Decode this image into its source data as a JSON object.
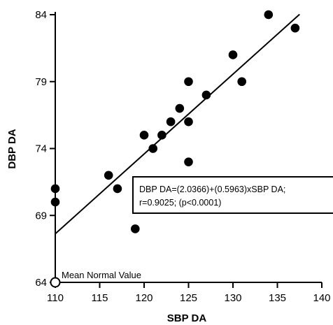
{
  "chart_data": {
    "type": "scatter",
    "xlabel": "SBP DA",
    "ylabel": "DBP DA",
    "xlim": [
      110,
      140
    ],
    "ylim": [
      64,
      84
    ],
    "x_ticks": [
      110,
      115,
      120,
      125,
      130,
      135,
      140
    ],
    "y_ticks": [
      64,
      69,
      74,
      79,
      84
    ],
    "grid": false,
    "points": [
      {
        "x": 110,
        "y": 71
      },
      {
        "x": 110,
        "y": 70
      },
      {
        "x": 116,
        "y": 72
      },
      {
        "x": 117,
        "y": 71
      },
      {
        "x": 119,
        "y": 68
      },
      {
        "x": 120,
        "y": 75
      },
      {
        "x": 121,
        "y": 74
      },
      {
        "x": 122,
        "y": 75
      },
      {
        "x": 123,
        "y": 76
      },
      {
        "x": 124,
        "y": 77
      },
      {
        "x": 125,
        "y": 79
      },
      {
        "x": 125,
        "y": 76
      },
      {
        "x": 125,
        "y": 73
      },
      {
        "x": 127,
        "y": 78
      },
      {
        "x": 130,
        "y": 81
      },
      {
        "x": 131,
        "y": 79
      },
      {
        "x": 134,
        "y": 84
      },
      {
        "x": 137,
        "y": 83
      }
    ],
    "regression": {
      "intercept": 2.0366,
      "slope": 0.5963,
      "x_start": 110,
      "x_end": 137.5
    },
    "reference_point": {
      "x": 110,
      "y": 64,
      "label": "Mean Normal Value"
    },
    "annotation_lines": [
      "DBP DA=(2.0366)+(0.5963)xSBP DA;",
      "r=0.9025; (p<0.0001)"
    ]
  }
}
